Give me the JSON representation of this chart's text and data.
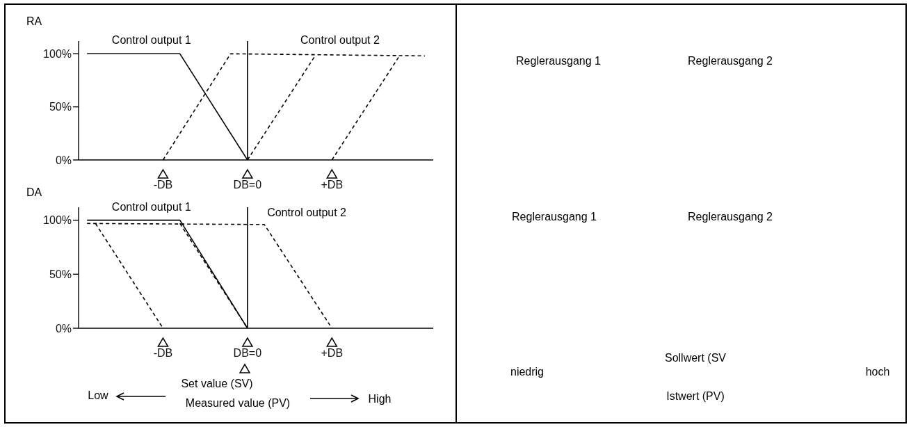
{
  "chart_data": [
    {
      "type": "line",
      "title": "RA",
      "categories": [
        null,
        null,
        null,
        null,
        null,
        null,
        null,
        null,
        null,
        null,
        "-DB",
        null,
        null,
        null,
        null,
        null,
        null,
        null,
        null,
        null,
        "DB=0",
        null,
        null,
        null,
        null,
        null,
        null,
        null,
        null,
        null,
        "+DB",
        null,
        null,
        null,
        null,
        null,
        null,
        null,
        null,
        null,
        null,
        null,
        null
      ],
      "ylim": [
        0,
        112
      ],
      "yticks": [
        {
          "value": 0,
          "label": "0%"
        },
        {
          "value": 50,
          "label": "50%"
        },
        {
          "value": 100,
          "label": "100%"
        }
      ],
      "grid": false,
      "ref_lines": [
        {
          "axis": "x",
          "value": "DB=0",
          "color": "#000000",
          "line_style": "solid"
        }
      ],
      "series": [
        {
          "name": "Control output 1",
          "color": "#000000",
          "line_style": "solid",
          "values": [
            null,
            100,
            null,
            null,
            null,
            null,
            null,
            null,
            null,
            null,
            null,
            null,
            100,
            null,
            null,
            null,
            null,
            null,
            null,
            null,
            0,
            null,
            null,
            null,
            null,
            null,
            null,
            null,
            null,
            null,
            null,
            null,
            null,
            null,
            null,
            null,
            null,
            null,
            null,
            null,
            null,
            null,
            null
          ]
        },
        {
          "name": "Control output 2",
          "color": "#000000",
          "line_style": "dashed",
          "values": [
            null,
            null,
            null,
            null,
            null,
            null,
            null,
            null,
            null,
            null,
            0,
            null,
            null,
            null,
            null,
            null,
            null,
            null,
            100,
            null,
            null,
            null,
            null,
            null,
            null,
            null,
            null,
            null,
            null,
            null,
            null,
            null,
            null,
            null,
            null,
            null,
            null,
            null,
            null,
            null,
            null,
            98,
            null
          ]
        },
        {
          "color": "#000000",
          "line_style": "dashed",
          "values": [
            null,
            null,
            null,
            null,
            null,
            null,
            null,
            null,
            null,
            null,
            null,
            null,
            null,
            null,
            null,
            null,
            null,
            null,
            null,
            null,
            0,
            null,
            null,
            null,
            null,
            null,
            null,
            null,
            98,
            null,
            null,
            null,
            null,
            null,
            null,
            null,
            null,
            null,
            null,
            null,
            null,
            null,
            null
          ]
        },
        {
          "color": "#000000",
          "line_style": "dashed",
          "values": [
            null,
            null,
            null,
            null,
            null,
            null,
            null,
            null,
            null,
            null,
            null,
            null,
            null,
            null,
            null,
            null,
            null,
            null,
            null,
            null,
            null,
            null,
            null,
            null,
            null,
            null,
            null,
            null,
            null,
            null,
            0,
            null,
            null,
            null,
            null,
            null,
            null,
            null,
            98,
            null,
            null,
            null,
            null
          ]
        }
      ]
    },
    {
      "type": "line",
      "title": "DA",
      "categories": [
        null,
        null,
        null,
        null,
        null,
        null,
        null,
        null,
        null,
        null,
        "-DB",
        null,
        null,
        null,
        null,
        null,
        null,
        null,
        null,
        null,
        "DB=0",
        null,
        null,
        null,
        null,
        null,
        null,
        null,
        null,
        null,
        "+DB",
        null,
        null,
        null,
        null,
        null,
        null,
        null,
        null,
        null,
        null,
        null,
        null
      ],
      "ylim": [
        0,
        112
      ],
      "yticks": [
        {
          "value": 0,
          "label": "0%"
        },
        {
          "value": 50,
          "label": "50%"
        },
        {
          "value": 100,
          "label": "100%"
        }
      ],
      "grid": false,
      "ref_lines": [
        {
          "axis": "x",
          "value": "DB=0",
          "color": "#000000",
          "line_style": "solid"
        }
      ],
      "annotations": [
        "Set value (SV)",
        "Low",
        "Measured value (PV)",
        "High"
      ],
      "series": [
        {
          "name": "Control output 1",
          "color": "#000000",
          "line_style": "solid",
          "values": [
            null,
            100,
            null,
            null,
            null,
            null,
            null,
            null,
            null,
            null,
            null,
            null,
            100,
            null,
            null,
            null,
            null,
            null,
            null,
            null,
            0,
            null,
            null,
            null,
            null,
            null,
            null,
            null,
            null,
            null,
            null,
            null,
            null,
            null,
            null,
            null,
            null,
            null,
            null,
            null,
            null,
            null,
            null
          ]
        },
        {
          "name": "Control output 2",
          "color": "#000000",
          "line_style": "dashed",
          "values": [
            null,
            97,
            null,
            null,
            null,
            null,
            null,
            null,
            null,
            null,
            null,
            null,
            null,
            null,
            null,
            null,
            null,
            null,
            null,
            null,
            null,
            null,
            96,
            null,
            null,
            null,
            null,
            null,
            null,
            null,
            0,
            null,
            null,
            null,
            null,
            null,
            null,
            null,
            null,
            null,
            null,
            null,
            null
          ]
        },
        {
          "color": "#000000",
          "line_style": "dashed",
          "values": [
            null,
            null,
            null,
            null,
            null,
            null,
            null,
            null,
            null,
            null,
            null,
            null,
            97,
            null,
            null,
            null,
            null,
            null,
            null,
            null,
            0,
            null,
            null,
            null,
            null,
            null,
            null,
            null,
            null,
            null,
            null,
            null,
            null,
            null,
            null,
            null,
            null,
            null,
            null,
            null,
            null,
            null,
            null
          ]
        },
        {
          "color": "#000000",
          "line_style": "dashed",
          "values": [
            null,
            null,
            97,
            null,
            null,
            null,
            null,
            null,
            null,
            null,
            0,
            null,
            null,
            null,
            null,
            null,
            null,
            null,
            null,
            null,
            null,
            null,
            null,
            null,
            null,
            null,
            null,
            null,
            null,
            null,
            null,
            null,
            null,
            null,
            null,
            null,
            null,
            null,
            null,
            null,
            null,
            null,
            null
          ]
        }
      ]
    },
    {
      "type": "other",
      "annotations": [
        "Reglerausgang 1",
        "Reglerausgang 2",
        "Reglerausgang 1",
        "Reglerausgang 2",
        "Sollwert (SV",
        "niedrig",
        "hoch",
        "Istwert (PV)"
      ]
    }
  ]
}
